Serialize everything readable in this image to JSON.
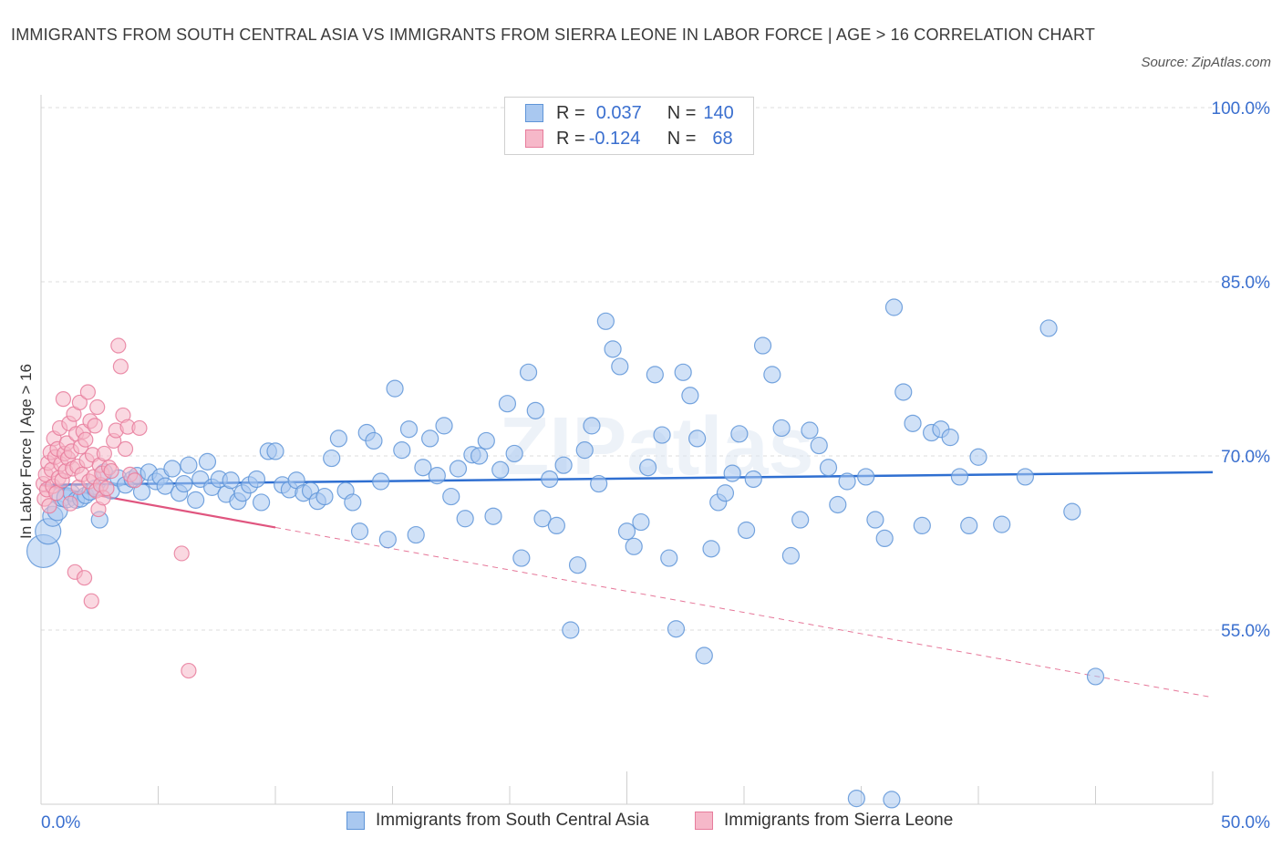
{
  "title": "IMMIGRANTS FROM SOUTH CENTRAL ASIA VS IMMIGRANTS FROM SIERRA LEONE IN LABOR FORCE | AGE > 16 CORRELATION CHART",
  "source": "Source: ZipAtlas.com",
  "watermark": "ZIPatlas",
  "legend": {
    "rows": [
      {
        "r_label": "R =",
        "r_value": "0.037",
        "n_label": "N =",
        "n_value": "140"
      },
      {
        "r_label": "R =",
        "r_value": "-0.124",
        "n_label": "N =",
        "n_value": "68"
      }
    ]
  },
  "colors": {
    "blue_fill": "#a9c8f0",
    "blue_stroke": "#5f95d8",
    "blue_line": "#2f6fd1",
    "pink_fill": "#f6b8c9",
    "pink_stroke": "#e77c9c",
    "pink_line": "#e0557f",
    "axis_text": "#3a6fcf",
    "grid": "#dcdcdc"
  },
  "chart_data": {
    "type": "scatter",
    "title": "IMMIGRANTS FROM SOUTH CENTRAL ASIA VS IMMIGRANTS FROM SIERRA LEONE IN LABOR FORCE | AGE > 16 CORRELATION CHART",
    "xlabel": "",
    "ylabel": "In Labor Force | Age > 16",
    "xlim": [
      0,
      50
    ],
    "ylim": [
      40,
      100
    ],
    "x_tick_labels": [
      "0.0%",
      "50.0%"
    ],
    "y_ticks": [
      55,
      70,
      85,
      100
    ],
    "y_tick_labels": [
      "55.0%",
      "70.0%",
      "85.0%",
      "100.0%"
    ],
    "grid": true,
    "legend_placement": "top-center",
    "series": [
      {
        "name": "Immigrants from South Central Asia",
        "color": "#a9c8f0",
        "trend": {
          "x": [
            0,
            50
          ],
          "y": [
            67.5,
            68.6
          ],
          "style": "solid"
        },
        "points": [
          [
            0.1,
            61.8
          ],
          [
            0.3,
            63.5
          ],
          [
            0.5,
            64.8
          ],
          [
            0.7,
            65.3
          ],
          [
            0.9,
            66.5
          ],
          [
            1.1,
            66.4
          ],
          [
            1.3,
            66.8
          ],
          [
            1.5,
            66.2
          ],
          [
            1.7,
            66.3
          ],
          [
            1.9,
            66.6
          ],
          [
            2.1,
            66.9
          ],
          [
            2.3,
            67.2
          ],
          [
            2.5,
            64.5
          ],
          [
            2.7,
            68.6
          ],
          [
            3.0,
            67.0
          ],
          [
            3.3,
            68.1
          ],
          [
            3.6,
            67.5
          ],
          [
            3.9,
            68.0
          ],
          [
            4.1,
            68.3
          ],
          [
            4.3,
            66.9
          ],
          [
            4.6,
            68.6
          ],
          [
            4.9,
            67.8
          ],
          [
            5.1,
            68.2
          ],
          [
            5.3,
            67.4
          ],
          [
            5.6,
            68.9
          ],
          [
            5.9,
            66.8
          ],
          [
            6.1,
            67.6
          ],
          [
            6.3,
            69.2
          ],
          [
            6.6,
            66.2
          ],
          [
            6.8,
            68.0
          ],
          [
            7.1,
            69.5
          ],
          [
            7.3,
            67.3
          ],
          [
            7.6,
            68.0
          ],
          [
            7.9,
            66.7
          ],
          [
            8.1,
            67.9
          ],
          [
            8.4,
            66.1
          ],
          [
            8.6,
            66.8
          ],
          [
            8.9,
            67.5
          ],
          [
            9.2,
            68.0
          ],
          [
            9.4,
            66.0
          ],
          [
            9.7,
            70.4
          ],
          [
            10.0,
            70.4
          ],
          [
            10.3,
            67.5
          ],
          [
            10.6,
            67.1
          ],
          [
            10.9,
            67.9
          ],
          [
            11.2,
            66.8
          ],
          [
            11.5,
            67.0
          ],
          [
            11.8,
            66.1
          ],
          [
            12.1,
            66.5
          ],
          [
            12.4,
            69.8
          ],
          [
            12.7,
            71.5
          ],
          [
            13.0,
            67.0
          ],
          [
            13.3,
            66.0
          ],
          [
            13.6,
            63.5
          ],
          [
            13.9,
            72.0
          ],
          [
            14.2,
            71.3
          ],
          [
            14.5,
            67.8
          ],
          [
            14.8,
            62.8
          ],
          [
            15.1,
            75.8
          ],
          [
            15.4,
            70.5
          ],
          [
            15.7,
            72.3
          ],
          [
            16.0,
            63.2
          ],
          [
            16.3,
            69.0
          ],
          [
            16.6,
            71.5
          ],
          [
            16.9,
            68.3
          ],
          [
            17.2,
            72.6
          ],
          [
            17.5,
            66.5
          ],
          [
            17.8,
            68.9
          ],
          [
            18.1,
            64.6
          ],
          [
            18.4,
            70.1
          ],
          [
            18.7,
            70.0
          ],
          [
            19.0,
            71.3
          ],
          [
            19.3,
            64.8
          ],
          [
            19.6,
            68.8
          ],
          [
            19.9,
            74.5
          ],
          [
            20.2,
            70.2
          ],
          [
            20.5,
            61.2
          ],
          [
            20.8,
            77.2
          ],
          [
            21.1,
            73.9
          ],
          [
            21.4,
            64.6
          ],
          [
            21.7,
            68.0
          ],
          [
            22.0,
            64.0
          ],
          [
            22.3,
            69.2
          ],
          [
            22.6,
            55.0
          ],
          [
            22.9,
            60.6
          ],
          [
            23.2,
            70.5
          ],
          [
            23.5,
            72.6
          ],
          [
            23.8,
            67.6
          ],
          [
            24.1,
            81.6
          ],
          [
            24.4,
            79.2
          ],
          [
            24.7,
            77.7
          ],
          [
            25.0,
            63.5
          ],
          [
            25.3,
            62.2
          ],
          [
            25.6,
            64.3
          ],
          [
            25.9,
            69.0
          ],
          [
            26.2,
            77.0
          ],
          [
            26.5,
            71.8
          ],
          [
            26.8,
            61.2
          ],
          [
            27.1,
            55.1
          ],
          [
            27.4,
            77.2
          ],
          [
            27.7,
            75.2
          ],
          [
            28.0,
            71.5
          ],
          [
            28.3,
            52.8
          ],
          [
            28.6,
            62.0
          ],
          [
            28.9,
            66.0
          ],
          [
            29.2,
            66.8
          ],
          [
            29.5,
            68.5
          ],
          [
            29.8,
            71.9
          ],
          [
            30.1,
            63.6
          ],
          [
            30.4,
            68.0
          ],
          [
            30.8,
            79.5
          ],
          [
            31.2,
            77.0
          ],
          [
            31.6,
            72.4
          ],
          [
            32.0,
            61.4
          ],
          [
            32.4,
            64.5
          ],
          [
            32.8,
            72.2
          ],
          [
            33.2,
            70.9
          ],
          [
            33.6,
            69.0
          ],
          [
            34.0,
            65.8
          ],
          [
            34.4,
            67.8
          ],
          [
            34.8,
            40.5
          ],
          [
            35.2,
            68.2
          ],
          [
            35.6,
            64.5
          ],
          [
            36.0,
            62.9
          ],
          [
            36.4,
            82.8
          ],
          [
            36.8,
            75.5
          ],
          [
            37.2,
            72.8
          ],
          [
            37.6,
            64.0
          ],
          [
            38.0,
            72.0
          ],
          [
            38.4,
            72.3
          ],
          [
            38.8,
            71.6
          ],
          [
            39.2,
            68.2
          ],
          [
            39.6,
            64.0
          ],
          [
            40.0,
            69.9
          ],
          [
            41.0,
            64.1
          ],
          [
            42.0,
            68.2
          ],
          [
            43.0,
            81.0
          ],
          [
            44.0,
            65.2
          ],
          [
            45.0,
            51.0
          ],
          [
            36.3,
            40.4
          ]
        ]
      },
      {
        "name": "Immigrants from Sierra Leone",
        "color": "#f6b8c9",
        "trend": {
          "x": [
            0,
            50
          ],
          "y": [
            67.5,
            49.2
          ],
          "style": "dashed"
        },
        "points": [
          [
            0.1,
            67.6
          ],
          [
            0.15,
            66.3
          ],
          [
            0.2,
            68.4
          ],
          [
            0.25,
            67.1
          ],
          [
            0.3,
            69.4
          ],
          [
            0.35,
            65.7
          ],
          [
            0.4,
            70.3
          ],
          [
            0.45,
            68.8
          ],
          [
            0.5,
            67.4
          ],
          [
            0.55,
            71.5
          ],
          [
            0.6,
            69.9
          ],
          [
            0.65,
            66.8
          ],
          [
            0.7,
            70.6
          ],
          [
            0.75,
            68.1
          ],
          [
            0.8,
            72.4
          ],
          [
            0.85,
            69.3
          ],
          [
            0.9,
            67.9
          ],
          [
            0.95,
            74.9
          ],
          [
            1.0,
            70.2
          ],
          [
            1.05,
            68.7
          ],
          [
            1.1,
            71.1
          ],
          [
            1.15,
            69.8
          ],
          [
            1.2,
            72.8
          ],
          [
            1.25,
            65.9
          ],
          [
            1.3,
            70.4
          ],
          [
            1.35,
            68.9
          ],
          [
            1.4,
            73.6
          ],
          [
            1.45,
            60.0
          ],
          [
            1.5,
            71.9
          ],
          [
            1.55,
            69.1
          ],
          [
            1.6,
            67.3
          ],
          [
            1.65,
            74.6
          ],
          [
            1.7,
            70.8
          ],
          [
            1.75,
            68.4
          ],
          [
            1.8,
            72.1
          ],
          [
            1.85,
            59.5
          ],
          [
            1.9,
            71.4
          ],
          [
            1.95,
            69.6
          ],
          [
            2.0,
            75.5
          ],
          [
            2.05,
            67.8
          ],
          [
            2.1,
            73.0
          ],
          [
            2.15,
            57.5
          ],
          [
            2.2,
            70.1
          ],
          [
            2.25,
            68.2
          ],
          [
            2.3,
            72.6
          ],
          [
            2.35,
            67.0
          ],
          [
            2.4,
            74.2
          ],
          [
            2.45,
            65.4
          ],
          [
            2.5,
            69.2
          ],
          [
            2.55,
            67.5
          ],
          [
            2.6,
            68.5
          ],
          [
            2.65,
            66.4
          ],
          [
            2.7,
            70.2
          ],
          [
            2.8,
            67.2
          ],
          [
            2.9,
            69.0
          ],
          [
            3.0,
            68.7
          ],
          [
            3.1,
            71.3
          ],
          [
            3.2,
            72.2
          ],
          [
            3.3,
            79.5
          ],
          [
            3.4,
            77.7
          ],
          [
            3.5,
            73.5
          ],
          [
            3.6,
            70.6
          ],
          [
            3.7,
            72.5
          ],
          [
            3.8,
            68.4
          ],
          [
            4.0,
            67.9
          ],
          [
            4.2,
            72.4
          ],
          [
            6.0,
            61.6
          ],
          [
            6.3,
            51.5
          ]
        ]
      }
    ]
  }
}
